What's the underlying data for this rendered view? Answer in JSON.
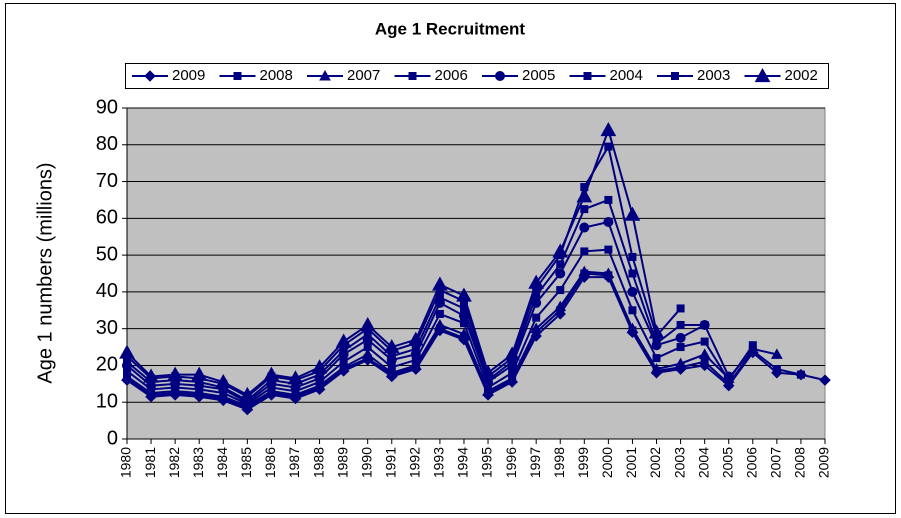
{
  "chart_data": {
    "type": "line",
    "title": "Age 1 Recruitment",
    "y_label": "Age 1 numbers (millions)",
    "categories": [
      "1980",
      "1981",
      "1982",
      "1983",
      "1984",
      "1985",
      "1986",
      "1987",
      "1988",
      "1989",
      "1990",
      "1991",
      "1992",
      "1993",
      "1994",
      "1995",
      "1996",
      "1997",
      "1998",
      "1999",
      "2000",
      "2001",
      "2002",
      "2003",
      "2004",
      "2005",
      "2006",
      "2007",
      "2008",
      "2009"
    ],
    "ylim": [
      0,
      90
    ],
    "yticks": [
      0,
      10,
      20,
      30,
      40,
      50,
      60,
      70,
      80,
      90
    ],
    "grid": true,
    "series": [
      {
        "name": "2009",
        "color": "#000080",
        "marker": "diamond",
        "values": [
          16,
          11.5,
          12,
          11.5,
          10.5,
          8,
          12,
          11,
          13.5,
          18.5,
          21.5,
          17,
          19,
          29.5,
          27,
          12,
          15.5,
          28,
          34,
          44,
          44,
          29,
          18,
          19,
          20,
          14.5,
          23.5,
          18,
          17.5,
          16
        ]
      },
      {
        "name": "2008",
        "color": "#000080",
        "marker": "square",
        "values": [
          16.5,
          12,
          12.5,
          12,
          11,
          8.5,
          12.5,
          11.5,
          14,
          19,
          22,
          17.5,
          19.5,
          30,
          27.5,
          12.5,
          16,
          29,
          35,
          45,
          44.5,
          29.5,
          18.5,
          19.5,
          21,
          15,
          24,
          19,
          17.5,
          null
        ]
      },
      {
        "name": "2007",
        "color": "#000080",
        "marker": "triangle",
        "values": [
          17,
          12.5,
          13,
          12.5,
          11.5,
          9,
          13,
          12,
          14.5,
          19.5,
          23,
          18,
          20,
          31,
          28.5,
          13,
          16.5,
          30,
          36,
          45.5,
          45,
          30,
          19,
          20.5,
          23,
          16.5,
          24.5,
          23,
          null,
          null
        ]
      },
      {
        "name": "2006",
        "color": "#000080",
        "marker": "square",
        "values": [
          18.5,
          13.5,
          14,
          13.5,
          12.5,
          9.5,
          14,
          13,
          15.5,
          21,
          25,
          19.5,
          21.5,
          34,
          31.5,
          14,
          18,
          33,
          40.5,
          51,
          51.5,
          35,
          22,
          25,
          26.5,
          16,
          25.5,
          null,
          null,
          null
        ]
      },
      {
        "name": "2005",
        "color": "#000080",
        "marker": "circle",
        "values": [
          20,
          14.5,
          15,
          14.5,
          13.5,
          10,
          15,
          14,
          16.5,
          23,
          27,
          21.5,
          23,
          37,
          33.5,
          15.5,
          20,
          37,
          45,
          57.5,
          59,
          40,
          25.5,
          27.5,
          31,
          17,
          null,
          null,
          null,
          null
        ]
      },
      {
        "name": "2004",
        "color": "#000080",
        "marker": "square",
        "values": [
          21,
          15.5,
          16,
          15.5,
          14,
          10.5,
          16,
          15,
          17.5,
          24,
          28.5,
          22.5,
          24.5,
          38.5,
          35.5,
          16,
          21,
          39,
          47.5,
          62.5,
          65,
          45,
          26,
          31,
          31,
          null,
          null,
          null,
          null,
          null
        ]
      },
      {
        "name": "2003",
        "color": "#000080",
        "marker": "square",
        "values": [
          22.5,
          16.5,
          17,
          16.5,
          15,
          11.5,
          17,
          16,
          18.5,
          25.5,
          30,
          24,
          26,
          40.5,
          37.5,
          17,
          22,
          41,
          50,
          68.5,
          79.5,
          49.5,
          28,
          35.5,
          null,
          null,
          null,
          null,
          null,
          null
        ]
      },
      {
        "name": "2002",
        "color": "#000080",
        "marker": "triangle-large",
        "values": [
          23.5,
          17,
          17.5,
          17.5,
          15.5,
          12,
          17.5,
          16.5,
          19.5,
          26.5,
          31,
          25,
          27,
          42,
          39,
          18,
          23,
          42.5,
          51,
          66,
          84,
          61,
          29,
          null,
          null,
          null,
          null,
          null,
          null,
          null
        ]
      }
    ]
  }
}
